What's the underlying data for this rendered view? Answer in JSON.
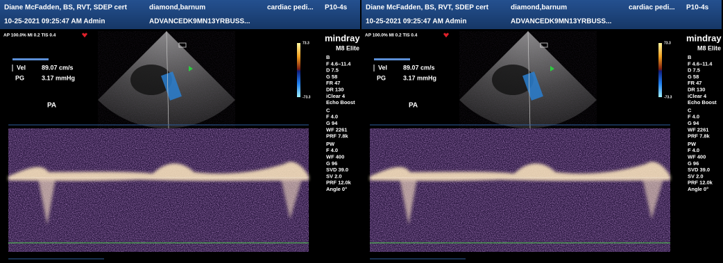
{
  "panels": [
    {
      "header": {
        "operator": "Diane McFadden, BS, RVT, SDEP cert",
        "patient": "diamond,barnum",
        "exam": "cardiac pedi...",
        "probe": "P10-4s",
        "datetime": "10-25-2021 09:25:47 AM Admin",
        "id": "ADVANCEDK9MN13YRBUSS..."
      },
      "status": "AP 100.0%  MI 0.2  TIS 0.4",
      "brand": "mindray",
      "model": "M8 Elite",
      "measurements": [
        {
          "label": "Vel",
          "value": "89.07 cm/s"
        },
        {
          "label": "PG",
          "value": "3.17 mmHg"
        }
      ],
      "view_label": "PA",
      "color_scale": [
        "73.3",
        "-73.3"
      ],
      "params": [
        "B",
        "F 4.6–11.4",
        "D 7.5",
        "G 58",
        "FR 47",
        "DR 130",
        "iClear 4",
        "Echo Boost",
        "C",
        "F 4.0",
        "G 94",
        "WF 2261",
        "PRF 7.8k",
        "PW",
        "F 4.0",
        "WF 400",
        "G 96",
        "SVD 39.0",
        "SV 2.0",
        "PRF 12.0k",
        "Angle 0°"
      ]
    },
    {
      "header": {
        "operator": "Diane McFadden, BS, RVT, SDEP cert",
        "patient": "diamond,barnum",
        "exam": "cardiac pedi...",
        "probe": "P10-4s",
        "datetime": "10-25-2021 09:25:47 AM Admin",
        "id": "ADVANCEDK9MN13YRBUSS..."
      },
      "status": "AP 100.0%  MI 0.2  TIS 0.4",
      "brand": "mindray",
      "model": "M8 Elite",
      "measurements": [
        {
          "label": "Vel",
          "value": "89.07 cm/s"
        },
        {
          "label": "PG",
          "value": "3.17 mmHg"
        }
      ],
      "view_label": "PA",
      "color_scale": [
        "73.3",
        "-73.3"
      ],
      "params": [
        "B",
        "F 4.6–11.4",
        "D 7.5",
        "G 58",
        "FR 47",
        "DR 130",
        "iClear 4",
        "Echo Boost",
        "C",
        "F 4.0",
        "G 94",
        "WF 2261",
        "PRF 7.8k",
        "PW",
        "F 4.0",
        "WF 400",
        "G 96",
        "SVD 39.0",
        "SV 2.0",
        "PRF 12.0k",
        "Angle 0°"
      ]
    }
  ]
}
